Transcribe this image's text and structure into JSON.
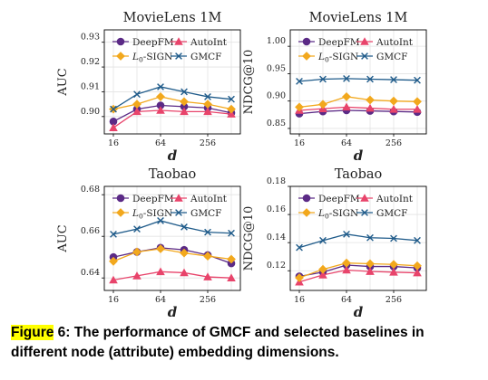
{
  "chart_data": [
    {
      "type": "line",
      "title": "MovieLens 1M",
      "xlabel": "d",
      "ylabel": "AUC",
      "x": [
        16,
        32,
        64,
        128,
        256,
        512
      ],
      "x_ticks": [
        "16",
        "64",
        "256"
      ],
      "ylim": [
        0.893,
        0.935
      ],
      "y_ticks": [
        "0.90",
        "0.91",
        "0.92",
        "0.93"
      ],
      "grid": true,
      "legend_placement": "top",
      "series": [
        {
          "name": "DeepFM",
          "values": [
            0.898,
            0.903,
            0.9045,
            0.904,
            0.9035,
            0.9015
          ]
        },
        {
          "name": "AutoInt",
          "values": [
            0.8955,
            0.902,
            0.9025,
            0.902,
            0.902,
            0.901
          ]
        },
        {
          "name": "L0-SIGN",
          "values": [
            0.903,
            0.905,
            0.908,
            0.906,
            0.905,
            0.903
          ]
        },
        {
          "name": "GMCF",
          "values": [
            0.903,
            0.909,
            0.912,
            0.91,
            0.908,
            0.907
          ]
        }
      ]
    },
    {
      "type": "line",
      "title": "MovieLens 1M",
      "xlabel": "d",
      "ylabel": "NDCG@10",
      "x": [
        16,
        32,
        64,
        128,
        256,
        512
      ],
      "x_ticks": [
        "16",
        "64",
        "256"
      ],
      "ylim": [
        0.84,
        1.03
      ],
      "y_ticks": [
        "0.85",
        "0.90",
        "0.95",
        "1.00"
      ],
      "grid": true,
      "legend_placement": "top",
      "series": [
        {
          "name": "DeepFM",
          "values": [
            0.877,
            0.881,
            0.883,
            0.882,
            0.881,
            0.88
          ]
        },
        {
          "name": "AutoInt",
          "values": [
            0.883,
            0.886,
            0.889,
            0.887,
            0.885,
            0.885
          ]
        },
        {
          "name": "L0-SIGN",
          "values": [
            0.889,
            0.894,
            0.908,
            0.902,
            0.9,
            0.899
          ]
        },
        {
          "name": "GMCF",
          "values": [
            0.936,
            0.94,
            0.941,
            0.94,
            0.939,
            0.938
          ]
        }
      ]
    },
    {
      "type": "line",
      "title": "Taobao",
      "xlabel": "d",
      "ylabel": "AUC",
      "x": [
        16,
        32,
        64,
        128,
        256,
        512
      ],
      "x_ticks": [
        "16",
        "64",
        "256"
      ],
      "ylim": [
        0.634,
        0.684
      ],
      "y_ticks": [
        "0.64",
        "0.66",
        "0.68"
      ],
      "grid": true,
      "legend_placement": "top",
      "series": [
        {
          "name": "DeepFM",
          "values": [
            0.65,
            0.6525,
            0.6545,
            0.6535,
            0.651,
            0.647
          ]
        },
        {
          "name": "AutoInt",
          "values": [
            0.639,
            0.641,
            0.643,
            0.6425,
            0.6405,
            0.64
          ]
        },
        {
          "name": "L0-SIGN",
          "values": [
            0.648,
            0.6525,
            0.654,
            0.652,
            0.6505,
            0.649
          ]
        },
        {
          "name": "GMCF",
          "values": [
            0.661,
            0.6635,
            0.6675,
            0.6645,
            0.662,
            0.6615
          ]
        }
      ]
    },
    {
      "type": "line",
      "title": "Taobao",
      "xlabel": "d",
      "ylabel": "NDCG@10",
      "x": [
        16,
        32,
        64,
        128,
        256,
        512
      ],
      "x_ticks": [
        "16",
        "64",
        "256"
      ],
      "ylim": [
        0.106,
        0.18
      ],
      "y_ticks": [
        "0.12",
        "0.14",
        "0.16",
        "0.18"
      ],
      "grid": true,
      "legend_placement": "top",
      "series": [
        {
          "name": "DeepFM",
          "values": [
            0.116,
            0.119,
            0.124,
            0.123,
            0.123,
            0.122
          ]
        },
        {
          "name": "AutoInt",
          "values": [
            0.112,
            0.117,
            0.1205,
            0.1195,
            0.119,
            0.1185
          ]
        },
        {
          "name": "L0-SIGN",
          "values": [
            0.115,
            0.121,
            0.1255,
            0.125,
            0.1245,
            0.1235
          ]
        },
        {
          "name": "GMCF",
          "values": [
            0.1365,
            0.1415,
            0.146,
            0.1435,
            0.143,
            0.1415
          ]
        }
      ]
    }
  ],
  "series_styles": [
    {
      "name": "DeepFM",
      "color": "#5b2a86",
      "marker": "circle"
    },
    {
      "name": "AutoInt",
      "color": "#e8446b",
      "marker": "triangle"
    },
    {
      "name": "L0-SIGN",
      "color": "#f2a81d",
      "marker": "diamond"
    },
    {
      "name": "GMCF",
      "color": "#1f5b8a",
      "marker": "x"
    }
  ],
  "caption": {
    "label": "Figure",
    "text": " 6: The performance of GMCF and selected baselines in different node (attribute) embedding dimensions."
  }
}
